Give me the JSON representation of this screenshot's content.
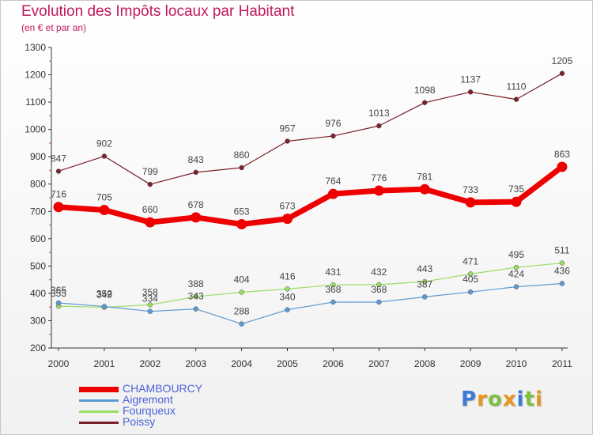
{
  "header": {
    "title": "Evolution des Impôts locaux par Habitant",
    "subtitle": "(en € et par an)"
  },
  "colors": {
    "title": "#c2185b",
    "legend_text": "#4a63d8",
    "axis": "#333333"
  },
  "chart_data": {
    "type": "line",
    "title": "Evolution des Impôts locaux par Habitant",
    "subtitle": "(en € et par an)",
    "xlabel": "",
    "ylabel": "",
    "ylim": [
      200,
      1300
    ],
    "yticks": [
      200,
      300,
      400,
      500,
      600,
      700,
      800,
      900,
      1000,
      1100,
      1200,
      1300
    ],
    "categories": [
      "2000",
      "2001",
      "2002",
      "2003",
      "2004",
      "2005",
      "2006",
      "2007",
      "2008",
      "2009",
      "2010",
      "2011"
    ],
    "legend_position": "bottom-left",
    "series": [
      {
        "name": "Poissy",
        "color": "#7b1f2a",
        "values": [
          847,
          902,
          799,
          843,
          860,
          957,
          976,
          1013,
          1098,
          1137,
          1110,
          1205
        ]
      },
      {
        "name": "Fourqueux",
        "color": "#99dd66",
        "values": [
          353,
          349,
          358,
          388,
          404,
          416,
          431,
          432,
          443,
          471,
          495,
          511
        ]
      },
      {
        "name": "Aigremont",
        "color": "#5b9bd5",
        "values": [
          365,
          352,
          334,
          343,
          288,
          340,
          368,
          368,
          387,
          405,
          424,
          436
        ]
      },
      {
        "name": "CHAMBOURCY",
        "color": "#ee0000",
        "values": [
          716,
          705,
          660,
          678,
          653,
          673,
          764,
          776,
          781,
          733,
          735,
          863
        ]
      }
    ]
  },
  "legend": [
    {
      "name": "CHAMBOURCY",
      "color": "#ee0000"
    },
    {
      "name": "Aigremont",
      "color": "#5b9bd5"
    },
    {
      "name": "Fourqueux",
      "color": "#99dd66"
    },
    {
      "name": "Poissy",
      "color": "#7b1f2a"
    }
  ],
  "logo": {
    "letters": [
      "P",
      "r",
      "o",
      "x",
      "i",
      "t",
      "i"
    ],
    "colors": [
      "#3a7bd5",
      "#e8961e",
      "#7fbf3f",
      "#e8961e",
      "#3a7bd5",
      "#7fbf3f",
      "#e8961e"
    ]
  }
}
